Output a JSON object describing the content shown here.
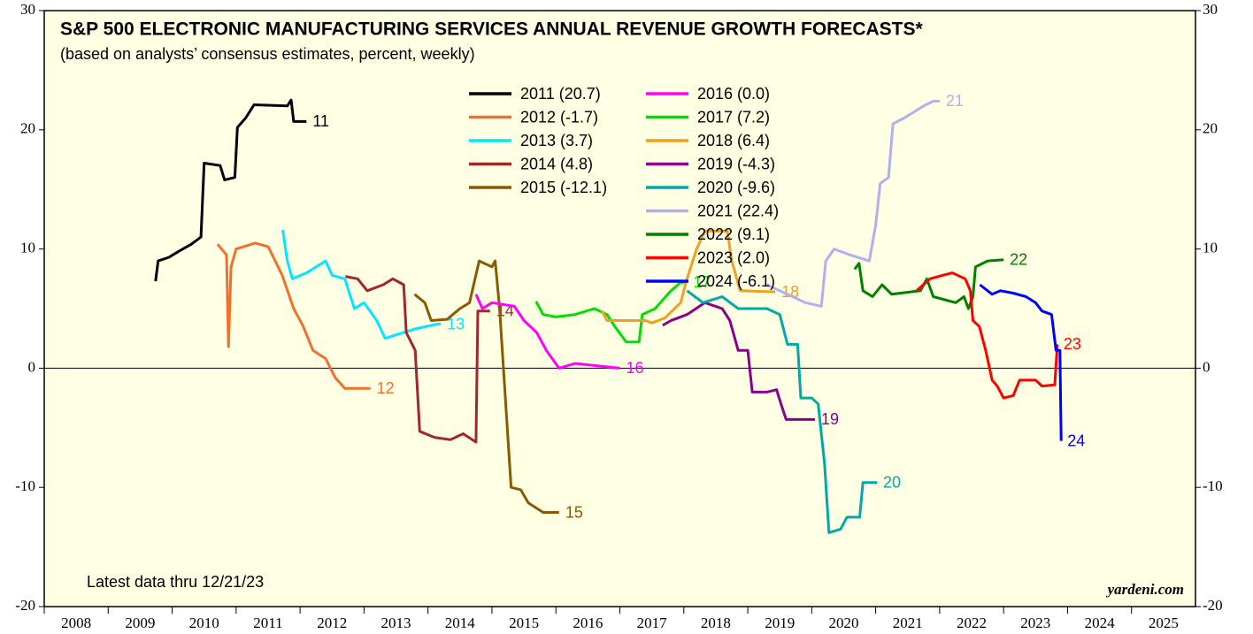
{
  "chart_data": {
    "type": "line",
    "title": "S&P 500 ELECTRONIC MANUFACTURING SERVICES ANNUAL REVENUE GROWTH FORECASTS*",
    "subtitle": "(based on analysts’ consensus estimates, percent, weekly)",
    "note": "Latest data thru 12/21/23",
    "source": "yardeni.com",
    "background": "#ffffe3",
    "zero_line": true,
    "xlim": [
      2008,
      2026
    ],
    "xticks": [
      2008,
      2009,
      2010,
      2011,
      2012,
      2013,
      2014,
      2015,
      2016,
      2017,
      2018,
      2019,
      2020,
      2021,
      2022,
      2023,
      2024,
      2025
    ],
    "ylim": [
      -20,
      30
    ],
    "yticks": [
      -20,
      -10,
      0,
      10,
      20,
      30
    ],
    "series": [
      {
        "name": "2011 (20.7)",
        "label": "11",
        "color": "#000000",
        "x": [
          2009.74,
          2009.78,
          2009.95,
          2010.1,
          2010.3,
          2010.45,
          2010.5,
          2010.75,
          2010.82,
          2010.98,
          2011.02,
          2011.15,
          2011.28,
          2011.8,
          2011.86,
          2011.9,
          2012.1
        ],
        "values": [
          7.3,
          9.0,
          9.3,
          9.8,
          10.4,
          11.0,
          17.2,
          17.0,
          15.8,
          16.0,
          20.2,
          21.0,
          22.1,
          22.0,
          22.5,
          20.7,
          20.7
        ]
      },
      {
        "name": "2012 (-1.7)",
        "label": "12",
        "color": "#f07030",
        "x": [
          2010.71,
          2010.85,
          2010.88,
          2010.92,
          2011.0,
          2011.3,
          2011.5,
          2011.72,
          2011.9,
          2012.05,
          2012.2,
          2012.4,
          2012.55,
          2012.7,
          2013.1
        ],
        "values": [
          10.4,
          9.5,
          1.8,
          8.5,
          10.0,
          10.5,
          10.2,
          7.8,
          5.0,
          3.5,
          1.5,
          0.8,
          -0.8,
          -1.7,
          -1.7
        ]
      },
      {
        "name": "2013 (3.7)",
        "label": "13",
        "color": "#00e8ff",
        "x": [
          2011.73,
          2011.8,
          2011.88,
          2012.1,
          2012.4,
          2012.5,
          2012.7,
          2012.85,
          2013.0,
          2013.2,
          2013.33,
          2013.5,
          2013.8,
          2014.15,
          2014.2
        ],
        "values": [
          11.6,
          9.0,
          7.5,
          8.0,
          9.0,
          7.8,
          7.5,
          5.0,
          5.5,
          4.0,
          2.5,
          2.8,
          3.3,
          3.7,
          3.7
        ]
      },
      {
        "name": "2014 (4.8)",
        "label": "14",
        "color": "#a0282a",
        "x": [
          2012.71,
          2012.9,
          2013.05,
          2013.3,
          2013.45,
          2013.62,
          2013.66,
          2013.8,
          2013.87,
          2014.1,
          2014.35,
          2014.55,
          2014.75,
          2014.78,
          2014.97
        ],
        "values": [
          7.7,
          7.5,
          6.5,
          7.0,
          7.5,
          7.0,
          3.0,
          1.5,
          -5.3,
          -5.8,
          -6.0,
          -5.5,
          -6.2,
          4.8,
          4.8
        ]
      },
      {
        "name": "2015 (-12.1)",
        "label": "15",
        "color": "#8b5a00",
        "x": [
          2013.79,
          2013.95,
          2014.05,
          2014.3,
          2014.5,
          2014.65,
          2014.8,
          2015.0,
          2015.05,
          2015.12,
          2015.3,
          2015.45,
          2015.57,
          2015.8,
          2016.05
        ],
        "values": [
          6.2,
          5.5,
          4.0,
          4.1,
          5.0,
          5.5,
          9.0,
          8.5,
          9.0,
          5.0,
          -10.0,
          -10.2,
          -11.3,
          -12.1,
          -12.1
        ]
      },
      {
        "name": "2016 (0.0)",
        "label": "16",
        "color": "#ff00ff",
        "x": [
          2014.75,
          2014.85,
          2015.0,
          2015.35,
          2015.5,
          2015.7,
          2015.85,
          2016.05,
          2016.3,
          2016.65,
          2017.0
        ],
        "values": [
          6.2,
          5.0,
          5.5,
          5.2,
          4.0,
          3.0,
          1.5,
          0.0,
          0.4,
          0.2,
          0.0
        ]
      },
      {
        "name": "2017 (7.2)",
        "label": "17",
        "color": "#00e000",
        "x": [
          2015.69,
          2015.8,
          2016.0,
          2016.3,
          2016.6,
          2016.8,
          2016.92,
          2017.1,
          2017.3,
          2017.35,
          2017.55,
          2017.8,
          2017.95,
          2018.05
        ],
        "values": [
          5.6,
          4.5,
          4.3,
          4.5,
          5.0,
          4.5,
          3.5,
          2.2,
          2.2,
          4.5,
          5.0,
          6.5,
          7.2,
          7.2
        ]
      },
      {
        "name": "2018 (6.4)",
        "label": "18",
        "color": "#f0a020",
        "x": [
          2016.72,
          2016.8,
          2017.4,
          2017.5,
          2017.7,
          2017.95,
          2018.05,
          2018.2,
          2018.33,
          2018.68,
          2018.75,
          2018.88,
          2019.43
        ],
        "values": [
          4.8,
          4.0,
          4.0,
          3.8,
          4.2,
          5.5,
          7.5,
          10.0,
          11.5,
          11.5,
          9.0,
          6.5,
          6.4
        ]
      },
      {
        "name": "2019 (-4.3)",
        "label": "19",
        "color": "#8b008b",
        "x": [
          2017.67,
          2017.8,
          2018.05,
          2018.33,
          2018.6,
          2018.72,
          2018.85,
          2019.0,
          2019.07,
          2019.3,
          2019.45,
          2019.52,
          2019.6,
          2020.05
        ],
        "values": [
          3.6,
          4.0,
          4.5,
          5.5,
          5.0,
          4.0,
          1.5,
          1.5,
          -2.0,
          -2.0,
          -1.8,
          -3.0,
          -4.3,
          -4.3
        ]
      },
      {
        "name": "2020 (-9.6)",
        "label": "20",
        "color": "#00a8a8",
        "x": [
          2018.05,
          2018.3,
          2018.6,
          2018.85,
          2019.3,
          2019.5,
          2019.62,
          2019.78,
          2019.83,
          2020.0,
          2020.1,
          2020.2,
          2020.27,
          2020.45,
          2020.55,
          2020.75,
          2020.8,
          2021.02
        ],
        "values": [
          6.5,
          5.5,
          6.0,
          5.0,
          5.0,
          4.5,
          2.0,
          2.0,
          -2.5,
          -2.5,
          -3.0,
          -8.0,
          -13.8,
          -13.5,
          -12.5,
          -12.5,
          -9.6,
          -9.6
        ]
      },
      {
        "name": "2021 (22.4)",
        "label": "21",
        "color": "#b0b0f0",
        "x": [
          2019.3,
          2019.5,
          2019.7,
          2019.9,
          2020.15,
          2020.22,
          2020.35,
          2020.6,
          2020.9,
          2021.0,
          2021.07,
          2021.2,
          2021.27,
          2021.45,
          2021.75,
          2021.9,
          2022.0
        ],
        "values": [
          7.0,
          6.5,
          6.0,
          5.5,
          5.2,
          9.0,
          10.0,
          9.5,
          9.0,
          12.0,
          15.5,
          16.0,
          20.5,
          21.0,
          22.0,
          22.4,
          22.4
        ]
      },
      {
        "name": "2022 (9.1)",
        "label": "22",
        "color": "#008000",
        "x": [
          2020.67,
          2020.74,
          2020.8,
          2020.95,
          2021.1,
          2021.25,
          2021.7,
          2021.8,
          2021.9,
          2022.25,
          2022.38,
          2022.45,
          2022.52,
          2022.56,
          2022.75,
          2023.0
        ],
        "values": [
          8.3,
          8.8,
          6.5,
          6.0,
          7.0,
          6.2,
          6.5,
          7.5,
          6.0,
          5.5,
          6.0,
          5.0,
          6.0,
          8.5,
          9.0,
          9.1
        ]
      },
      {
        "name": "2023 (2.0)",
        "label": "23",
        "color": "#ff0000",
        "x": [
          2021.64,
          2021.85,
          2022.05,
          2022.2,
          2022.4,
          2022.48,
          2022.52,
          2022.62,
          2022.72,
          2022.82,
          2022.9,
          2023.0,
          2023.15,
          2023.25,
          2023.5,
          2023.6,
          2023.8,
          2023.84
        ],
        "values": [
          6.5,
          7.5,
          7.8,
          8.0,
          7.5,
          6.5,
          4.0,
          3.5,
          1.5,
          -1.0,
          -1.5,
          -2.5,
          -2.3,
          -1.0,
          -1.0,
          -1.5,
          -1.4,
          2.0
        ]
      },
      {
        "name": "2024 (-6.1)",
        "label": "24",
        "color": "#0000ff",
        "x": [
          2022.63,
          2022.75,
          2022.82,
          2022.95,
          2023.15,
          2023.35,
          2023.5,
          2023.6,
          2023.75,
          2023.82,
          2023.88,
          2023.9
        ],
        "values": [
          7.0,
          6.5,
          6.2,
          6.5,
          6.3,
          6.0,
          5.5,
          4.8,
          4.5,
          1.5,
          1.5,
          -6.1
        ]
      }
    ]
  }
}
